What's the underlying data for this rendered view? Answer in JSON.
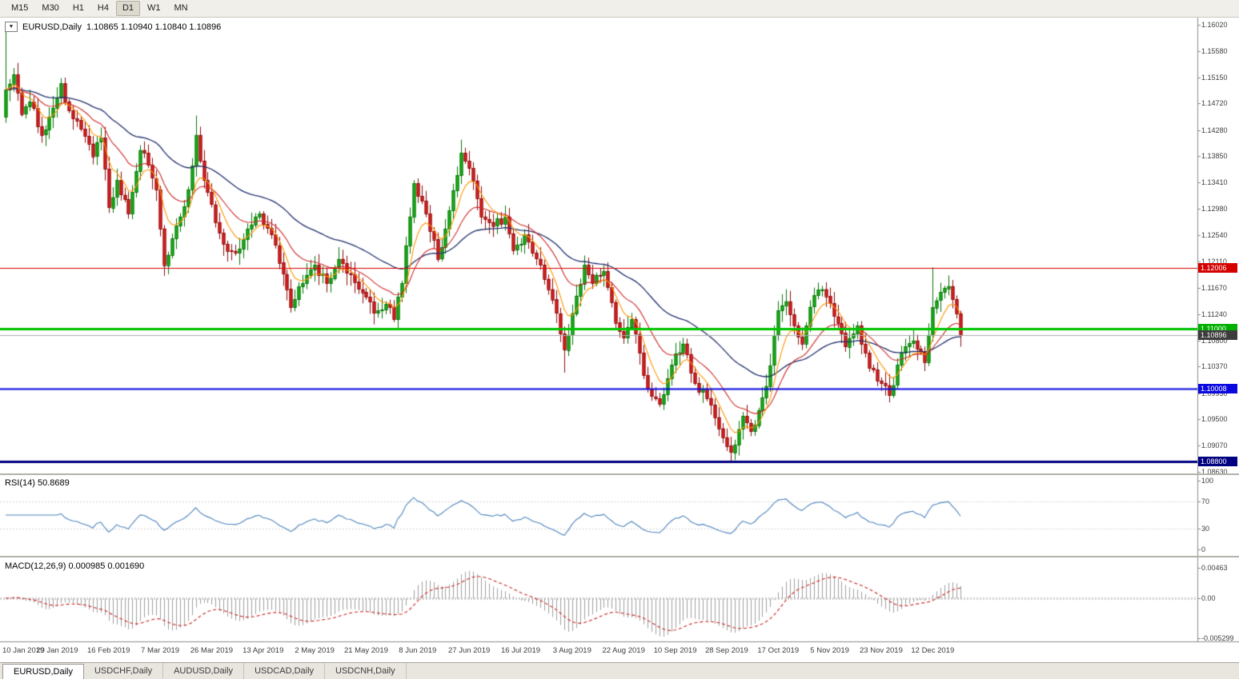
{
  "toolbar": {
    "timeframes": [
      "M15",
      "M30",
      "H1",
      "H4",
      "D1",
      "W1",
      "MN"
    ],
    "active": "D1"
  },
  "icons": {
    "collapse": "▼"
  },
  "chart": {
    "title": "EURUSD,Daily",
    "ohlc": "1.10865 1.10940 1.10840 1.10896",
    "price_max": 1.1602,
    "price_min": 1.0863,
    "y_ticks": [
      "1.16020",
      "1.15580",
      "1.15150",
      "1.14720",
      "1.14280",
      "1.13850",
      "1.13410",
      "1.12980",
      "1.12540",
      "1.12110",
      "1.11670",
      "1.11240",
      "1.10800",
      "1.10370",
      "1.09930",
      "1.09500",
      "1.09070",
      "1.08630"
    ],
    "h_lines": [
      {
        "value": 1.12006,
        "label": "1.12006",
        "color": "#d40000",
        "badge": "#d40000",
        "width": 1
      },
      {
        "value": 1.11,
        "label": "1.11000",
        "color": "#00c400",
        "badge": "#00b000",
        "width": 3
      },
      {
        "value": 1.10896,
        "label": "1.10896",
        "color": "#aaaaaa",
        "badge": "#3c3c3c",
        "width": 1
      },
      {
        "value": 1.10008,
        "label": "1.10008",
        "color": "#0a0ae0",
        "badge": "#0a0ae0",
        "width": 2
      },
      {
        "value": 1.088,
        "label": "1.08800",
        "color": "#000080",
        "badge": "#000080",
        "width": 3
      }
    ],
    "x_labels": [
      "10 Jan 2019",
      "29 Jan 2019",
      "16 Feb 2019",
      "7 Mar 2019",
      "26 Mar 2019",
      "13 Apr 2019",
      "2 May 2019",
      "21 May 2019",
      "8 Jun 2019",
      "27 Jun 2019",
      "16 Jul 2019",
      "3 Aug 2019",
      "22 Aug 2019",
      "10 Sep 2019",
      "28 Sep 2019",
      "17 Oct 2019",
      "5 Nov 2019",
      "23 Nov 2019",
      "12 Dec 2019"
    ]
  },
  "rsi": {
    "label": "RSI(14) 50.8689",
    "ticks": [
      "100",
      "70",
      "30",
      "0"
    ],
    "levels": [
      70,
      30
    ],
    "value": 50.8689
  },
  "macd": {
    "label": "MACD(12,26,9) 0.000985 0.001690",
    "ticks": [
      "0.00463",
      "0.00",
      "-0.005299"
    ],
    "macd_value": 0.000985,
    "signal_value": 0.00169
  },
  "tabs": [
    "EURUSD,Daily",
    "USDCHF,Daily",
    "AUDUSD,Daily",
    "USDCAD,Daily",
    "USDCNH,Daily"
  ],
  "chart_data": {
    "type": "candlestick",
    "symbol": "EURUSD",
    "timeframe": "Daily",
    "title": "EURUSD,Daily",
    "ohlc_current": {
      "open": 1.10865,
      "high": 1.1094,
      "low": 1.1084,
      "close": 1.10896
    },
    "y_range": [
      1.0863,
      1.1602
    ],
    "horizontal_levels": [
      1.12006,
      1.11,
      1.10008,
      1.088
    ],
    "indicators": [
      {
        "name": "RSI",
        "period": 14,
        "current": 50.8689,
        "range": [
          0,
          100
        ],
        "levels": [
          70,
          30
        ]
      },
      {
        "name": "MACD",
        "params": [
          12,
          26,
          9
        ],
        "macd": 0.000985,
        "signal": 0.00169,
        "axis": [
          0.00463,
          0.0,
          -0.005299
        ]
      }
    ],
    "bars": 242,
    "last_close": 1.10896,
    "anchors": [
      [
        0,
        1.1495
      ],
      [
        2,
        1.152
      ],
      [
        4,
        1.1455
      ],
      [
        6,
        1.1475
      ],
      [
        9,
        1.142
      ],
      [
        11,
        1.145
      ],
      [
        14,
        1.1505
      ],
      [
        16,
        1.146
      ],
      [
        19,
        1.143
      ],
      [
        22,
        1.1385
      ],
      [
        24,
        1.1415
      ],
      [
        26,
        1.13
      ],
      [
        28,
        1.1345
      ],
      [
        31,
        1.129
      ],
      [
        34,
        1.1395
      ],
      [
        36,
        1.137
      ],
      [
        38,
        1.133
      ],
      [
        40,
        1.1205
      ],
      [
        43,
        1.127
      ],
      [
        46,
        1.133
      ],
      [
        48,
        1.142
      ],
      [
        50,
        1.1345
      ],
      [
        52,
        1.1305
      ],
      [
        55,
        1.124
      ],
      [
        58,
        1.1225
      ],
      [
        61,
        1.1265
      ],
      [
        64,
        1.129
      ],
      [
        67,
        1.1255
      ],
      [
        70,
        1.119
      ],
      [
        72,
        1.1135
      ],
      [
        75,
        1.1175
      ],
      [
        78,
        1.1205
      ],
      [
        81,
        1.1175
      ],
      [
        84,
        1.1215
      ],
      [
        87,
        1.119
      ],
      [
        90,
        1.116
      ],
      [
        93,
        1.1125
      ],
      [
        96,
        1.114
      ],
      [
        98,
        1.1115
      ],
      [
        100,
        1.1175
      ],
      [
        103,
        1.134
      ],
      [
        106,
        1.129
      ],
      [
        109,
        1.1215
      ],
      [
        112,
        1.1295
      ],
      [
        115,
        1.139
      ],
      [
        117,
        1.1365
      ],
      [
        120,
        1.1285
      ],
      [
        123,
        1.127
      ],
      [
        126,
        1.1285
      ],
      [
        128,
        1.123
      ],
      [
        131,
        1.1255
      ],
      [
        134,
        1.1215
      ],
      [
        137,
        1.1165
      ],
      [
        139,
        1.1125
      ],
      [
        141,
        1.1065
      ],
      [
        143,
        1.1125
      ],
      [
        146,
        1.1205
      ],
      [
        148,
        1.1175
      ],
      [
        151,
        1.1195
      ],
      [
        154,
        1.111
      ],
      [
        156,
        1.1085
      ],
      [
        158,
        1.1115
      ],
      [
        160,
        1.106
      ],
      [
        162,
        1.1
      ],
      [
        165,
        1.0975
      ],
      [
        168,
        1.104
      ],
      [
        171,
        1.1075
      ],
      [
        174,
        1.101
      ],
      [
        177,
        1.0985
      ],
      [
        180,
        1.0935
      ],
      [
        183,
        1.0895
      ],
      [
        186,
        1.0955
      ],
      [
        188,
        1.093
      ],
      [
        190,
        1.0965
      ],
      [
        192,
        1.1005
      ],
      [
        195,
        1.113
      ],
      [
        197,
        1.1145
      ],
      [
        199,
        1.1105
      ],
      [
        201,
        1.1075
      ],
      [
        204,
        1.1155
      ],
      [
        206,
        1.1165
      ],
      [
        209,
        1.112
      ],
      [
        212,
        1.107
      ],
      [
        215,
        1.1105
      ],
      [
        218,
        1.1035
      ],
      [
        221,
        1.101
      ],
      [
        223,
        1.099
      ],
      [
        226,
        1.106
      ],
      [
        229,
        1.108
      ],
      [
        232,
        1.1045
      ],
      [
        234,
        1.1135
      ],
      [
        236,
        1.116
      ],
      [
        238,
        1.117
      ],
      [
        240,
        1.1125
      ],
      [
        241,
        1.10896
      ]
    ],
    "overrides": {
      "0": {
        "h": 1.16,
        "l": 1.144
      },
      "48": {
        "h": 1.1452
      },
      "115": {
        "h": 1.1412
      },
      "141": {
        "l": 1.1027
      },
      "183": {
        "l": 1.0879
      },
      "234": {
        "h": 1.1201
      }
    },
    "colors": {
      "up_body": "#1cb21c",
      "up_edge": "#067306",
      "down_body": "#dd2222",
      "down_edge": "#8e0b0b",
      "ma_fast": "#ff9500",
      "ma_mid": "#d02828",
      "ma_slow": "#23306e",
      "rsi_line": "#4c84bd",
      "macd_hist": "#9f9f9f",
      "macd_signal": "#cc2222"
    }
  }
}
